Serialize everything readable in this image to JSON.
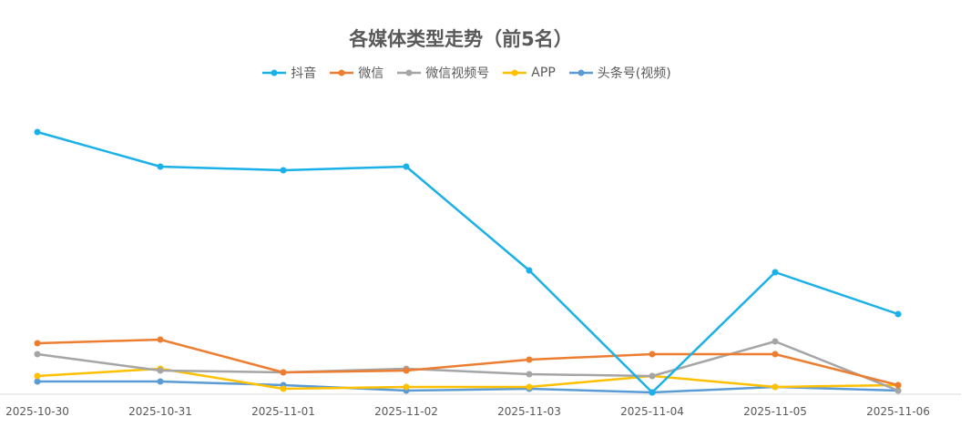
{
  "chart_data": {
    "type": "line",
    "title": "各媒体类型走势（前5名）",
    "categories": [
      "2025-10-30",
      "2025-10-31",
      "2025-11-01",
      "2025-11-02",
      "2025-11-03",
      "2025-11-04",
      "2025-11-05",
      "2025-11-06"
    ],
    "series": [
      {
        "name": "抖音",
        "color": "#1AB0E8",
        "values": [
          288,
          250,
          246,
          250,
          136,
          2,
          134,
          88
        ]
      },
      {
        "name": "微信",
        "color": "#ED7D31",
        "values": [
          56,
          60,
          24,
          26,
          38,
          44,
          44,
          10
        ]
      },
      {
        "name": "微信视频号",
        "color": "#A5A5A5",
        "values": [
          44,
          26,
          24,
          28,
          22,
          20,
          58,
          4
        ]
      },
      {
        "name": "APP",
        "color": "#FFC000",
        "values": [
          20,
          28,
          6,
          8,
          8,
          20,
          8,
          10
        ]
      },
      {
        "name": "头条号(视频)",
        "color": "#5B9BD5",
        "values": [
          14,
          14,
          10,
          4,
          6,
          2,
          8,
          4
        ]
      }
    ],
    "ylim": [
      0,
      300
    ],
    "grid": false,
    "legend_position": "top"
  }
}
